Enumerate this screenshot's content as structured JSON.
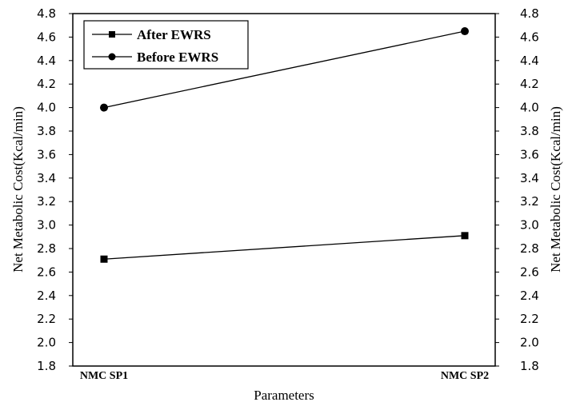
{
  "chart_data": {
    "type": "line",
    "title": "",
    "xlabel": "Parameters",
    "ylabel": "Net Metabolic Cost(Kcal/min)",
    "ylabel_right": "Net Metabolic Cost(Kcal/min)",
    "categories": [
      "NMC SP1",
      "NMC SP2"
    ],
    "ylim": [
      1.8,
      4.8
    ],
    "yticks": [
      "1.8",
      "2.0",
      "2.2",
      "2.4",
      "2.6",
      "2.8",
      "3.0",
      "3.2",
      "3.4",
      "3.6",
      "3.8",
      "4.0",
      "4.2",
      "4.4",
      "4.6",
      "4.8"
    ],
    "grid": false,
    "legend_position": "top-left",
    "series": [
      {
        "name": "After EWRS",
        "marker": "square",
        "values": [
          2.71,
          2.91
        ]
      },
      {
        "name": "Before EWRS",
        "marker": "circle",
        "values": [
          4.0,
          4.65
        ]
      }
    ]
  }
}
